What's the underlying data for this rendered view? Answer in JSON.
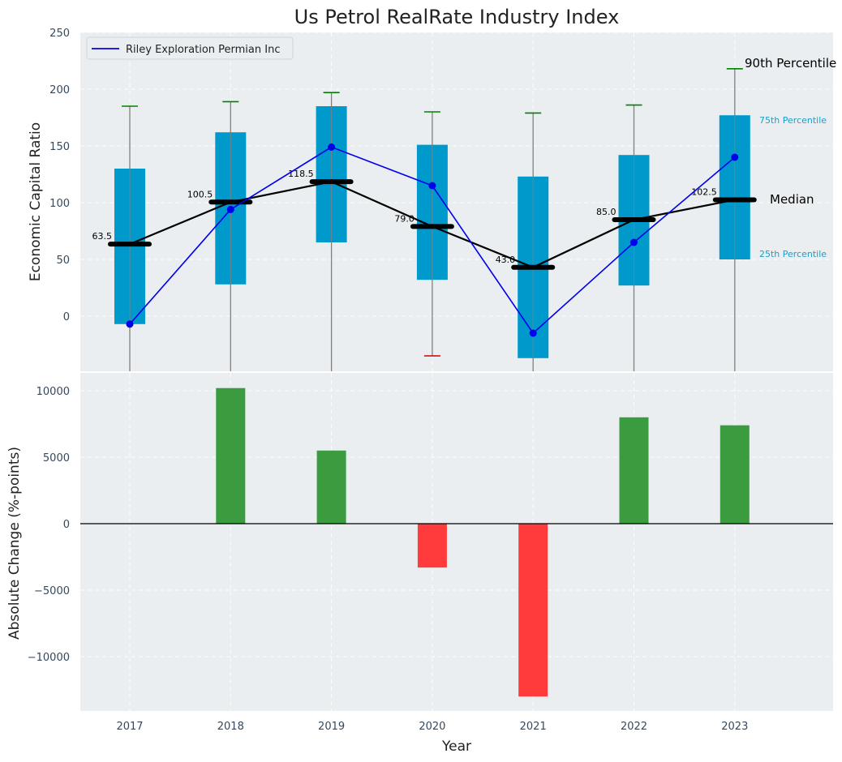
{
  "title": "Us Petrol RealRate Industry Index",
  "colors": {
    "box": "#0099cc",
    "whisker": "#808080",
    "cap_high": "#008000",
    "cap_low": "#cc0000",
    "median": "#000000",
    "company": "#0000ee",
    "pos_bar": "#3a9c3e",
    "neg_bar": "#ff3b3b",
    "annotation": "#1a9fc9"
  },
  "legend": {
    "company": "Riley Exploration Permian Inc"
  },
  "top_panel": {
    "ylabel": "Economic Capital Ratio",
    "ylim": [
      -50,
      250
    ],
    "yticks": [
      0,
      50,
      100,
      150,
      200,
      250
    ],
    "annotations": {
      "p90": "90th Percentile",
      "p75": "75th Percentile",
      "median": "Median",
      "p25": "25th Percentile"
    }
  },
  "bottom_panel": {
    "ylabel": "Absolute Change (%-points)",
    "xlabel": "Year",
    "ylim": [
      -14000,
      11500
    ],
    "yticks": [
      10000,
      5000,
      0,
      -5000,
      -10000
    ],
    "ytick_labels": [
      "10000",
      "5000",
      "0",
      "−5000",
      "−10000"
    ]
  },
  "chart_data": {
    "type": "box",
    "x": [
      "2017",
      "2018",
      "2019",
      "2020",
      "2021",
      "2022",
      "2023"
    ],
    "p25": [
      -7,
      28,
      65,
      32,
      -37,
      27,
      50
    ],
    "p75": [
      130,
      162,
      185,
      151,
      123,
      142,
      177
    ],
    "p90": [
      185,
      189,
      197,
      180,
      179,
      186,
      218
    ],
    "p10": [
      null,
      null,
      null,
      -35,
      null,
      null,
      null
    ],
    "median": [
      63.5,
      100.5,
      118.5,
      79.0,
      43.0,
      85.0,
      102.5
    ],
    "median_labels": [
      "63.5",
      "100.5",
      "118.5",
      "79.0",
      "43.0",
      "85.0",
      "102.5"
    ],
    "company": [
      -7,
      94,
      149,
      115,
      -15,
      65,
      140
    ],
    "absolute_change": [
      0,
      10200,
      5500,
      -3300,
      -13000,
      8000,
      7400
    ]
  }
}
